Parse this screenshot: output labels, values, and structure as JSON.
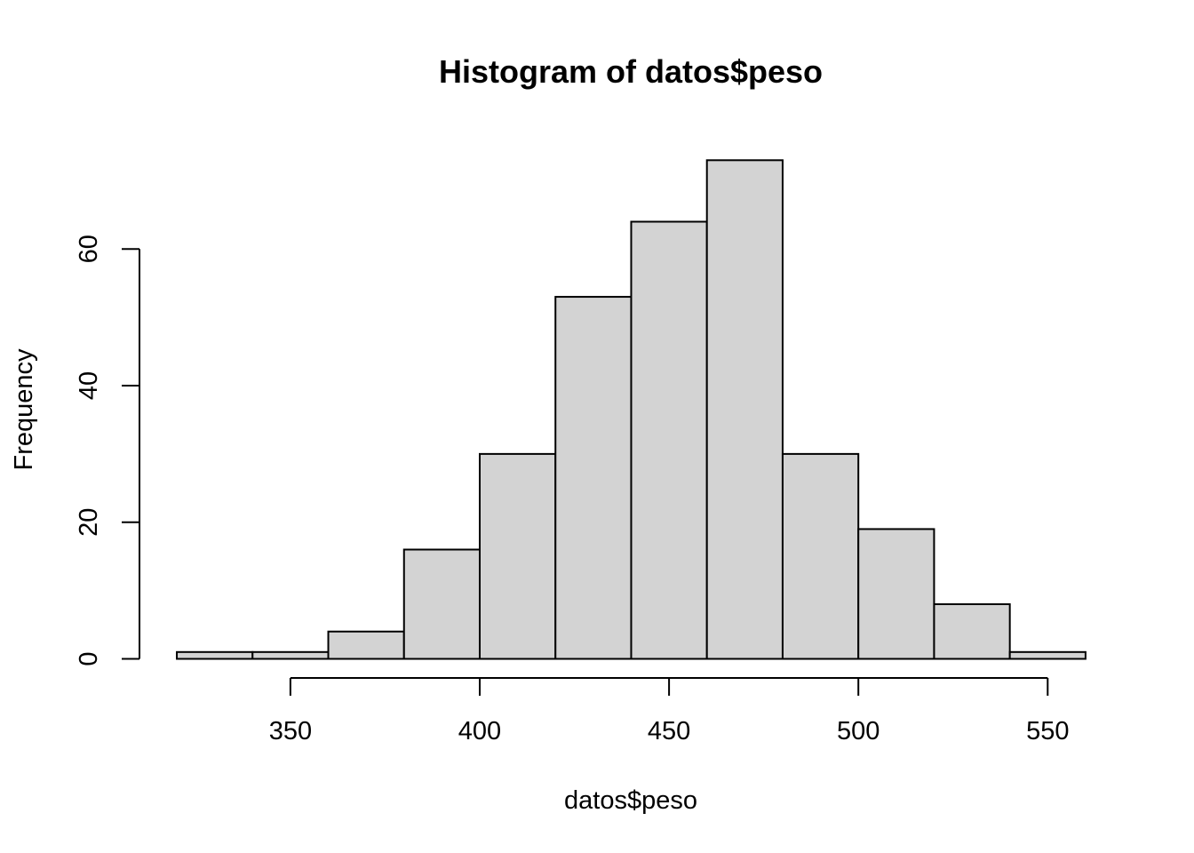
{
  "colors": {
    "bar_fill": "#d3d3d3",
    "bar_stroke": "#000000",
    "background": "#ffffff"
  },
  "chart_data": {
    "type": "bar",
    "title": "Histogram of datos$peso",
    "xlabel": "datos$peso",
    "ylabel": "Frequency",
    "bins": [
      {
        "start": 320,
        "end": 340,
        "count": 1
      },
      {
        "start": 340,
        "end": 360,
        "count": 1
      },
      {
        "start": 360,
        "end": 380,
        "count": 4
      },
      {
        "start": 380,
        "end": 400,
        "count": 16
      },
      {
        "start": 400,
        "end": 420,
        "count": 30
      },
      {
        "start": 420,
        "end": 440,
        "count": 53
      },
      {
        "start": 440,
        "end": 460,
        "count": 64
      },
      {
        "start": 460,
        "end": 480,
        "count": 73
      },
      {
        "start": 480,
        "end": 500,
        "count": 30
      },
      {
        "start": 500,
        "end": 520,
        "count": 19
      },
      {
        "start": 520,
        "end": 540,
        "count": 8
      },
      {
        "start": 540,
        "end": 560,
        "count": 1
      }
    ],
    "x_ticks": [
      350,
      400,
      450,
      500,
      550
    ],
    "x_tick_labels": [
      "350",
      "400",
      "450",
      "500",
      "550"
    ],
    "y_ticks": [
      0,
      20,
      40,
      60
    ],
    "y_tick_labels": [
      "0",
      "20",
      "40",
      "60"
    ],
    "xlim": [
      320,
      560
    ],
    "ylim": [
      0,
      73
    ],
    "grid": false,
    "legend": "none"
  }
}
